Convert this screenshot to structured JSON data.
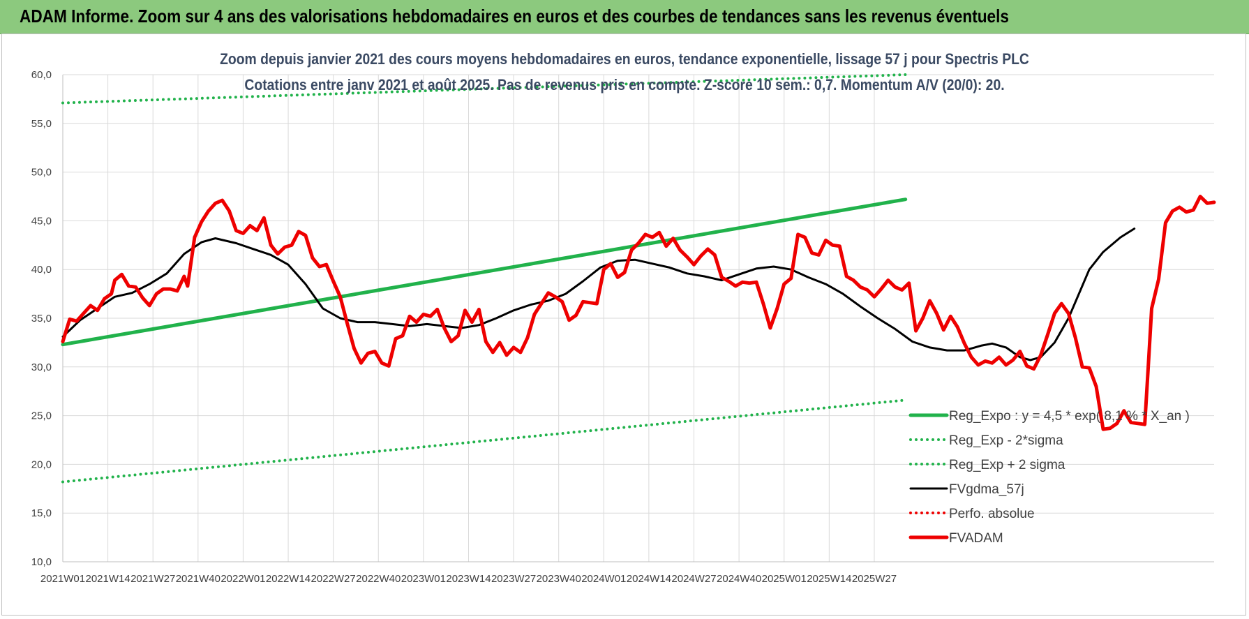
{
  "banner": {
    "title": "ADAM Informe. Zoom sur 4 ans des valorisations hebdomadaires en euros et des courbes de tendances sans les revenus éventuels"
  },
  "colors": {
    "banner": "#8cc97e",
    "trend": "#21b24b",
    "price": "#ee0000",
    "moving_average": "#000000",
    "grid": "#d9d9d9"
  },
  "chart_data": {
    "type": "line",
    "title": "Zoom depuis janvier 2021 des cours moyens hebdomadaires en euros, tendance exponentielle, lissage 57 j pour Spectris PLC",
    "subtitle": "Cotations entre janv 2021 et août 2025.  Pas de revenus pris en compte. Z-score 10 sem.: 0,7. Momentum A/V (20/0): 20.",
    "xlabel": "",
    "ylabel": "",
    "ylim": [
      10,
      60
    ],
    "y_ticks": [
      "10,0",
      "15,0",
      "20,0",
      "25,0",
      "30,0",
      "35,0",
      "40,0",
      "45,0",
      "50,0",
      "55,0",
      "60,0"
    ],
    "x_ticks": [
      "2021W01",
      "2021W14",
      "2021W27",
      "2021W40",
      "2022W01",
      "2022W14",
      "2022W27",
      "2022W40",
      "2023W01",
      "2023W14",
      "2023W27",
      "2023W40",
      "2024W01",
      "2024W14",
      "2024W27",
      "2024W40",
      "2025W01",
      "2025W14",
      "2025W27"
    ],
    "x_unit": "weeks since 2021W01",
    "grid": true,
    "legend_position": "bottom-right",
    "series": [
      {
        "name": "Reg_Expo : y = 4,5 * exp( 8,1 % * X_an )",
        "style": "solid-thick",
        "color": "#21b24b",
        "points": [
          [
            0,
            32.3
          ],
          [
            243,
            47.2
          ]
        ]
      },
      {
        "name": "Reg_Exp - 2*sigma",
        "style": "dotted",
        "color": "#21b24b",
        "points": [
          [
            0,
            18.2
          ],
          [
            243,
            26.6
          ]
        ]
      },
      {
        "name": "Reg_Exp + 2 sigma",
        "style": "dotted",
        "color": "#21b24b",
        "points": [
          [
            0,
            57.1
          ],
          [
            243,
            60
          ]
        ]
      },
      {
        "name": "FVgdma_57j",
        "style": "solid",
        "color": "#000000",
        "points": [
          [
            0,
            33.1
          ],
          [
            5,
            34.8
          ],
          [
            10,
            36.0
          ],
          [
            15,
            37.2
          ],
          [
            20,
            37.6
          ],
          [
            25,
            38.5
          ],
          [
            30,
            39.6
          ],
          [
            35,
            41.6
          ],
          [
            40,
            42.8
          ],
          [
            44,
            43.2
          ],
          [
            50,
            42.7
          ],
          [
            55,
            42.1
          ],
          [
            60,
            41.5
          ],
          [
            65,
            40.5
          ],
          [
            70,
            38.5
          ],
          [
            75,
            36.0
          ],
          [
            80,
            35.0
          ],
          [
            85,
            34.6
          ],
          [
            90,
            34.6
          ],
          [
            95,
            34.4
          ],
          [
            100,
            34.2
          ],
          [
            105,
            34.4
          ],
          [
            110,
            34.2
          ],
          [
            115,
            34.0
          ],
          [
            120,
            34.3
          ],
          [
            125,
            35.0
          ],
          [
            130,
            35.8
          ],
          [
            135,
            36.4
          ],
          [
            140,
            36.8
          ],
          [
            145,
            37.5
          ],
          [
            150,
            38.8
          ],
          [
            155,
            40.2
          ],
          [
            160,
            40.9
          ],
          [
            165,
            41.0
          ],
          [
            170,
            40.6
          ],
          [
            175,
            40.2
          ],
          [
            180,
            39.6
          ],
          [
            185,
            39.3
          ],
          [
            190,
            38.9
          ],
          [
            195,
            39.5
          ],
          [
            200,
            40.1
          ],
          [
            205,
            40.3
          ],
          [
            210,
            40.0
          ],
          [
            215,
            39.2
          ],
          [
            220,
            38.5
          ],
          [
            225,
            37.5
          ],
          [
            230,
            36.2
          ],
          [
            235,
            35.0
          ],
          [
            240,
            33.9
          ],
          [
            245,
            32.6
          ],
          [
            250,
            32.0
          ],
          [
            255,
            31.7
          ],
          [
            260,
            31.7
          ],
          [
            265,
            32.2
          ],
          [
            268,
            32.4
          ],
          [
            272,
            32.0
          ],
          [
            276,
            31.0
          ],
          [
            279,
            30.7
          ],
          [
            282,
            31.0
          ],
          [
            286,
            32.5
          ],
          [
            290,
            35.0
          ],
          [
            293,
            37.5
          ],
          [
            296,
            40.0
          ],
          [
            300,
            41.8
          ],
          [
            305,
            43.3
          ],
          [
            309,
            44.2
          ]
        ]
      },
      {
        "name": "Perfo. absolue",
        "style": "dotted",
        "color": "#ee0000",
        "points": []
      },
      {
        "name": "FVADAM",
        "style": "solid-thick",
        "color": "#ee0000",
        "points": [
          [
            0,
            32.6
          ],
          [
            2,
            34.9
          ],
          [
            4,
            34.7
          ],
          [
            6,
            35.5
          ],
          [
            8,
            36.3
          ],
          [
            10,
            35.8
          ],
          [
            12,
            37.0
          ],
          [
            14,
            37.5
          ],
          [
            15,
            38.9
          ],
          [
            17,
            39.5
          ],
          [
            19,
            38.3
          ],
          [
            21,
            38.2
          ],
          [
            23,
            37.1
          ],
          [
            25,
            36.3
          ],
          [
            27,
            37.5
          ],
          [
            29,
            38.0
          ],
          [
            31,
            38.0
          ],
          [
            33,
            37.8
          ],
          [
            35,
            39.3
          ],
          [
            36,
            38.3
          ],
          [
            38,
            43.3
          ],
          [
            40,
            44.9
          ],
          [
            42,
            46.0
          ],
          [
            44,
            46.8
          ],
          [
            46,
            47.1
          ],
          [
            48,
            46.0
          ],
          [
            50,
            44.0
          ],
          [
            52,
            43.7
          ],
          [
            54,
            44.5
          ],
          [
            56,
            44.0
          ],
          [
            58,
            45.3
          ],
          [
            60,
            42.5
          ],
          [
            62,
            41.6
          ],
          [
            64,
            42.3
          ],
          [
            66,
            42.5
          ],
          [
            68,
            43.9
          ],
          [
            70,
            43.5
          ],
          [
            72,
            41.2
          ],
          [
            74,
            40.3
          ],
          [
            76,
            40.5
          ],
          [
            78,
            38.8
          ],
          [
            80,
            37.2
          ],
          [
            82,
            34.5
          ],
          [
            84,
            31.9
          ],
          [
            86,
            30.4
          ],
          [
            88,
            31.4
          ],
          [
            90,
            31.6
          ],
          [
            92,
            30.4
          ],
          [
            94,
            30.1
          ],
          [
            96,
            32.9
          ],
          [
            98,
            33.2
          ],
          [
            100,
            35.2
          ],
          [
            102,
            34.6
          ],
          [
            104,
            35.4
          ],
          [
            106,
            35.2
          ],
          [
            108,
            35.9
          ],
          [
            110,
            34.0
          ],
          [
            112,
            32.6
          ],
          [
            114,
            33.2
          ],
          [
            116,
            35.8
          ],
          [
            118,
            34.6
          ],
          [
            120,
            35.9
          ],
          [
            122,
            32.6
          ],
          [
            124,
            31.5
          ],
          [
            126,
            32.5
          ],
          [
            128,
            31.2
          ],
          [
            130,
            32.0
          ],
          [
            132,
            31.5
          ],
          [
            134,
            33.0
          ],
          [
            136,
            35.4
          ],
          [
            138,
            36.5
          ],
          [
            140,
            37.6
          ],
          [
            142,
            37.2
          ],
          [
            144,
            36.7
          ],
          [
            146,
            34.8
          ],
          [
            148,
            35.3
          ],
          [
            150,
            36.7
          ],
          [
            152,
            36.6
          ],
          [
            154,
            36.5
          ],
          [
            156,
            40.0
          ],
          [
            158,
            40.6
          ],
          [
            160,
            39.2
          ],
          [
            162,
            39.7
          ],
          [
            164,
            42.0
          ],
          [
            166,
            42.7
          ],
          [
            168,
            43.6
          ],
          [
            170,
            43.3
          ],
          [
            172,
            43.8
          ],
          [
            174,
            42.4
          ],
          [
            176,
            43.2
          ],
          [
            178,
            42.0
          ],
          [
            180,
            41.3
          ],
          [
            182,
            40.5
          ],
          [
            184,
            41.4
          ],
          [
            186,
            42.1
          ],
          [
            188,
            41.5
          ],
          [
            190,
            39.2
          ],
          [
            192,
            38.8
          ],
          [
            194,
            38.3
          ],
          [
            196,
            38.7
          ],
          [
            198,
            38.6
          ],
          [
            200,
            38.7
          ],
          [
            202,
            36.5
          ],
          [
            204,
            34.0
          ],
          [
            206,
            36.0
          ],
          [
            208,
            38.5
          ],
          [
            210,
            39.1
          ],
          [
            212,
            43.6
          ],
          [
            214,
            43.3
          ],
          [
            216,
            41.7
          ],
          [
            218,
            41.5
          ],
          [
            220,
            43.0
          ],
          [
            222,
            42.5
          ],
          [
            224,
            42.4
          ],
          [
            226,
            39.3
          ],
          [
            228,
            38.9
          ],
          [
            230,
            38.2
          ],
          [
            232,
            37.9
          ],
          [
            234,
            37.2
          ],
          [
            236,
            38.0
          ],
          [
            238,
            38.9
          ],
          [
            240,
            38.2
          ],
          [
            242,
            37.9
          ],
          [
            244,
            38.6
          ],
          [
            246,
            33.7
          ],
          [
            248,
            35.0
          ],
          [
            250,
            36.8
          ],
          [
            252,
            35.5
          ],
          [
            254,
            33.8
          ],
          [
            256,
            35.2
          ],
          [
            258,
            34.1
          ],
          [
            260,
            32.4
          ],
          [
            262,
            31.0
          ],
          [
            264,
            30.2
          ],
          [
            266,
            30.6
          ],
          [
            268,
            30.4
          ],
          [
            270,
            31.0
          ],
          [
            272,
            30.2
          ],
          [
            274,
            30.7
          ],
          [
            276,
            31.6
          ],
          [
            278,
            30.1
          ],
          [
            280,
            29.8
          ],
          [
            282,
            31.2
          ],
          [
            284,
            33.3
          ],
          [
            286,
            35.5
          ],
          [
            288,
            36.5
          ],
          [
            290,
            35.5
          ],
          [
            292,
            33.0
          ],
          [
            294,
            30.0
          ],
          [
            296,
            29.9
          ],
          [
            298,
            28.0
          ],
          [
            300,
            23.6
          ],
          [
            302,
            23.7
          ],
          [
            304,
            24.2
          ],
          [
            306,
            25.5
          ],
          [
            308,
            24.3
          ],
          [
            310,
            24.2
          ],
          [
            312,
            24.1
          ],
          [
            313,
            30.0
          ],
          [
            314,
            36.0
          ],
          [
            316,
            39.0
          ],
          [
            318,
            44.8
          ],
          [
            320,
            46.0
          ],
          [
            322,
            46.4
          ],
          [
            324,
            45.9
          ],
          [
            326,
            46.1
          ],
          [
            328,
            47.5
          ],
          [
            330,
            46.8
          ],
          [
            332,
            46.9
          ]
        ]
      }
    ]
  }
}
